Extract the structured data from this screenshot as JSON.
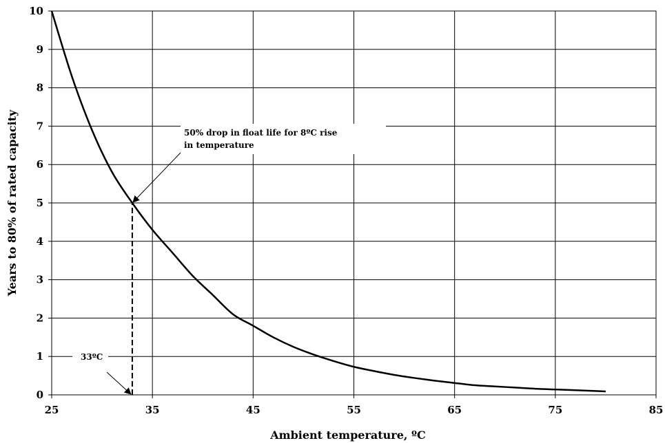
{
  "chart_data": {
    "type": "line",
    "title": "",
    "xlabel": "Ambient temperature, ºC",
    "ylabel": "Years to 80% of rated capacity",
    "xlim": [
      25,
      85
    ],
    "ylim": [
      0,
      10
    ],
    "x_ticks": [
      "25",
      "35",
      "45",
      "55",
      "65",
      "75",
      "85"
    ],
    "y_ticks": [
      "0",
      "1",
      "2",
      "3",
      "4",
      "5",
      "6",
      "7",
      "8",
      "9",
      "10"
    ],
    "grid": true,
    "legend": "none",
    "series": [
      {
        "name": "",
        "x": [
          25,
          27,
          29,
          31,
          33,
          35,
          37,
          39,
          41,
          43,
          45,
          47,
          49,
          51,
          53,
          55,
          57,
          59,
          61,
          63,
          65,
          67,
          69,
          71,
          73,
          75,
          77,
          80
        ],
        "y": [
          10.0,
          8.3,
          6.9,
          5.8,
          5.0,
          4.3,
          3.7,
          3.1,
          2.6,
          2.1,
          1.8,
          1.5,
          1.25,
          1.05,
          0.88,
          0.73,
          0.62,
          0.52,
          0.44,
          0.37,
          0.31,
          0.25,
          0.22,
          0.19,
          0.16,
          0.14,
          0.12,
          0.09
        ]
      }
    ],
    "annotations": [
      {
        "text": "50% drop in float life for 8ºC rise in temperature",
        "x": 33,
        "y": 5
      },
      {
        "text": "33ºC",
        "x": 33,
        "y": 0
      }
    ],
    "reference_line": {
      "x": 33,
      "y_from": 0,
      "y_to": 5,
      "style": "dashed"
    }
  }
}
